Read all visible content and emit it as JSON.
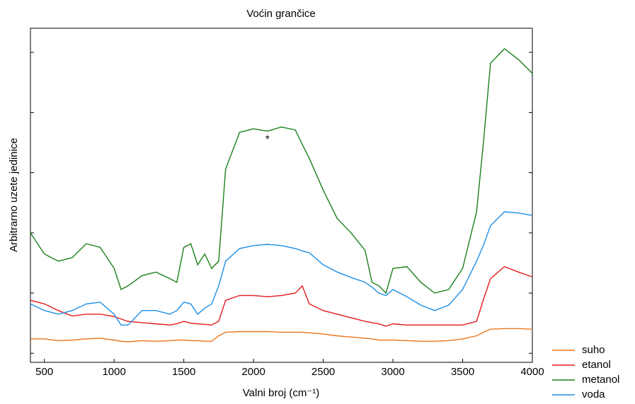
{
  "chart_data": {
    "type": "line",
    "title": "Voćin grančice",
    "xlabel": "Valni broj (cm⁻¹)",
    "ylabel": "Arbitrarno uzete jedinice",
    "x": [
      400,
      500,
      600,
      700,
      800,
      900,
      1000,
      1050,
      1100,
      1200,
      1300,
      1400,
      1450,
      1500,
      1550,
      1600,
      1650,
      1700,
      1750,
      1800,
      1900,
      2000,
      2100,
      2200,
      2300,
      2350,
      2400,
      2500,
      2600,
      2700,
      2800,
      2850,
      2900,
      2950,
      3000,
      3100,
      3200,
      3300,
      3400,
      3500,
      3600,
      3650,
      3700,
      3800,
      3900,
      4000
    ],
    "series": [
      {
        "name": "suho",
        "color": "#e8761e",
        "values": [
          0.24,
          0.24,
          0.21,
          0.22,
          0.24,
          0.25,
          0.22,
          0.2,
          0.19,
          0.21,
          0.2,
          0.21,
          0.22,
          0.22,
          0.21,
          0.21,
          0.2,
          0.2,
          0.29,
          0.35,
          0.36,
          0.36,
          0.36,
          0.35,
          0.35,
          0.35,
          0.34,
          0.32,
          0.29,
          0.27,
          0.25,
          0.24,
          0.22,
          0.22,
          0.22,
          0.21,
          0.2,
          0.2,
          0.21,
          0.24,
          0.29,
          0.35,
          0.4,
          0.41,
          0.41,
          0.4
        ]
      },
      {
        "name": "etanol",
        "color": "#e31a1c",
        "values": [
          0.88,
          0.82,
          0.71,
          0.62,
          0.65,
          0.65,
          0.61,
          0.57,
          0.53,
          0.51,
          0.49,
          0.47,
          0.49,
          0.53,
          0.5,
          0.49,
          0.48,
          0.47,
          0.53,
          0.88,
          0.96,
          0.96,
          0.94,
          0.96,
          1.0,
          1.12,
          0.82,
          0.71,
          0.65,
          0.59,
          0.53,
          0.51,
          0.49,
          0.45,
          0.49,
          0.47,
          0.47,
          0.47,
          0.47,
          0.47,
          0.53,
          0.9,
          1.24,
          1.44,
          1.35,
          1.27
        ]
      },
      {
        "name": "metanol",
        "color": "#1a801a",
        "values": [
          2.0,
          1.65,
          1.53,
          1.59,
          1.82,
          1.76,
          1.41,
          1.06,
          1.12,
          1.29,
          1.35,
          1.24,
          1.18,
          1.76,
          1.82,
          1.47,
          1.65,
          1.41,
          1.53,
          3.06,
          3.67,
          3.73,
          3.69,
          3.76,
          3.71,
          3.47,
          3.24,
          2.71,
          2.24,
          2.0,
          1.71,
          1.18,
          1.12,
          1.0,
          1.41,
          1.44,
          1.18,
          1.0,
          1.06,
          1.41,
          2.35,
          3.53,
          4.82,
          5.06,
          4.88,
          4.65
        ]
      },
      {
        "name": "voda",
        "color": "#1e8fe6",
        "values": [
          0.82,
          0.71,
          0.65,
          0.71,
          0.82,
          0.85,
          0.65,
          0.47,
          0.47,
          0.71,
          0.71,
          0.65,
          0.71,
          0.85,
          0.82,
          0.65,
          0.75,
          0.82,
          1.12,
          1.53,
          1.74,
          1.79,
          1.81,
          1.79,
          1.74,
          1.7,
          1.67,
          1.47,
          1.35,
          1.26,
          1.18,
          1.1,
          1.0,
          0.96,
          1.06,
          0.94,
          0.8,
          0.71,
          0.8,
          1.06,
          1.53,
          1.8,
          2.12,
          2.35,
          2.33,
          2.29
        ]
      }
    ],
    "annotations": [
      {
        "text": "*",
        "x": 2100,
        "y": 3.55
      }
    ],
    "xlim": [
      400,
      4000
    ],
    "xticks": [
      500,
      1000,
      1500,
      2000,
      2500,
      3000,
      3500,
      4000
    ],
    "ylim": [
      -0.15,
      5.4
    ],
    "yticks": [
      0,
      1,
      2,
      3,
      4,
      5
    ],
    "legend": "outside-bottom-right"
  }
}
